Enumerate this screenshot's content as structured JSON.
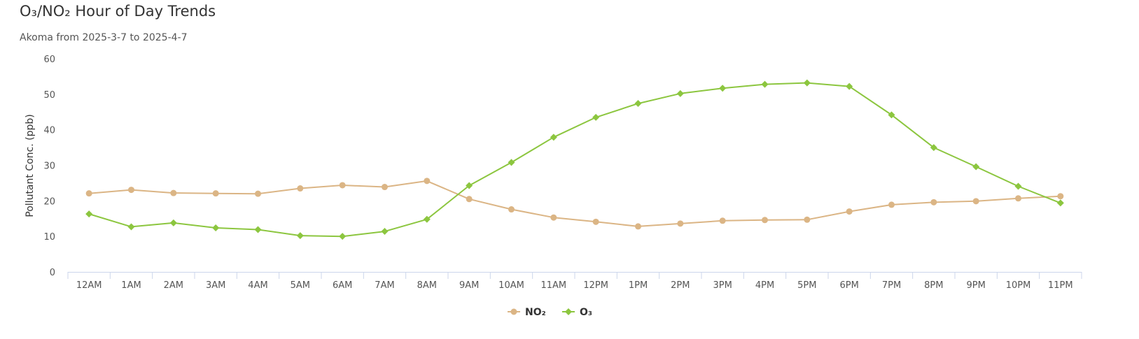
{
  "chart_data": {
    "type": "line",
    "title": "O₃/NO₂ Hour of Day Trends",
    "subtitle": "Akoma from 2025-3-7 to 2025-4-7",
    "ylabel": "Pollutant Conc. (ppb)",
    "xlabel": "",
    "ylim": [
      0,
      60
    ],
    "yticks": [
      0,
      10,
      20,
      30,
      40,
      50,
      60
    ],
    "categories": [
      "12AM",
      "1AM",
      "2AM",
      "3AM",
      "4AM",
      "5AM",
      "6AM",
      "7AM",
      "8AM",
      "9AM",
      "10AM",
      "11AM",
      "12PM",
      "1PM",
      "2PM",
      "3PM",
      "4PM",
      "5PM",
      "6PM",
      "7PM",
      "8PM",
      "9PM",
      "10PM",
      "11PM"
    ],
    "legend_position": "bottom-center",
    "grid": false,
    "series": [
      {
        "name": "NO₂",
        "color": "#dbb585",
        "marker": "circle",
        "values": [
          22.1,
          23.1,
          22.2,
          22.1,
          22.0,
          23.5,
          24.4,
          23.9,
          25.6,
          20.5,
          17.6,
          15.3,
          14.1,
          12.8,
          13.6,
          14.4,
          14.6,
          14.7,
          17.0,
          18.9,
          19.6,
          19.9,
          20.7,
          21.3
        ]
      },
      {
        "name": "O₃",
        "color": "#8cc63f",
        "marker": "diamond",
        "values": [
          16.3,
          12.7,
          13.8,
          12.4,
          11.9,
          10.2,
          10.0,
          11.4,
          14.8,
          24.3,
          30.8,
          37.9,
          43.5,
          47.4,
          50.2,
          51.7,
          52.8,
          53.2,
          52.2,
          44.2,
          35.0,
          29.6,
          24.1,
          19.4
        ]
      }
    ]
  }
}
